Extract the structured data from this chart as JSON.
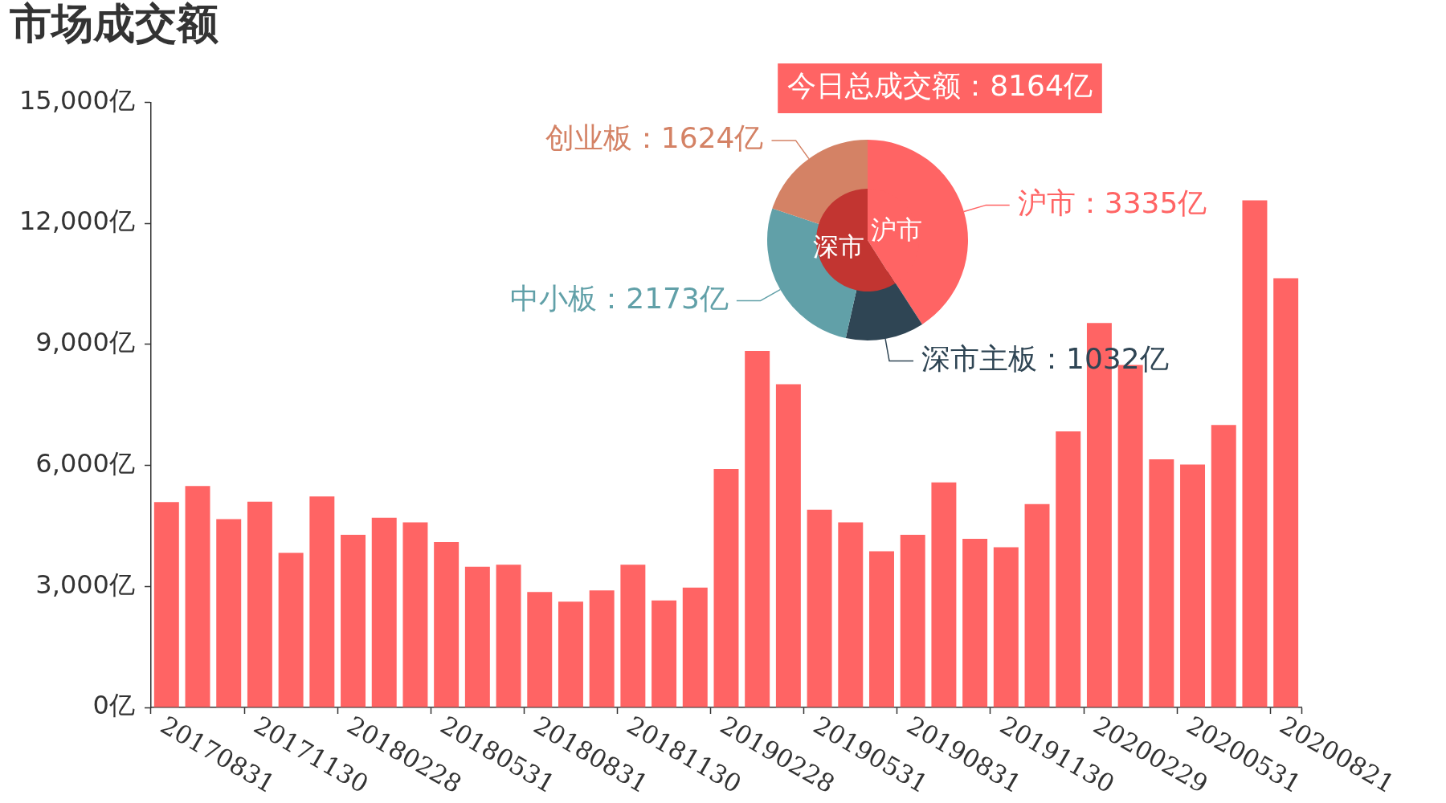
{
  "chart_data": [
    {
      "type": "bar",
      "title": "市场成交额",
      "categories": [
        "20170831",
        null,
        null,
        "20171130",
        null,
        null,
        "20180228",
        null,
        null,
        "20180531",
        null,
        null,
        "20180831",
        null,
        null,
        "20181130",
        null,
        null,
        "20190228",
        null,
        null,
        "20190531",
        null,
        null,
        "20190831",
        null,
        null,
        "20191130",
        null,
        null,
        "20200229",
        null,
        null,
        "20200531",
        null,
        null,
        "20200821"
      ],
      "values": [
        5090,
        5490,
        4670,
        5100,
        3830,
        5230,
        4280,
        4700,
        4590,
        4100,
        3490,
        3540,
        2860,
        2620,
        2900,
        3540,
        2650,
        2970,
        5910,
        8840,
        8010,
        4900,
        4590,
        3870,
        4280,
        5580,
        4180,
        3970,
        5040,
        6840,
        9530,
        8490,
        6150,
        6020,
        7000,
        12570,
        10640
      ],
      "color": "#ff6464",
      "ylim": [
        0,
        15000
      ],
      "yticks": [
        {
          "value": 0,
          "label": "0亿"
        },
        {
          "value": 3000,
          "label": "3,000亿"
        },
        {
          "value": 6000,
          "label": "6,000亿"
        },
        {
          "value": 9000,
          "label": "9,000亿"
        },
        {
          "value": 12000,
          "label": "12,000亿"
        },
        {
          "value": 15000,
          "label": "15,000亿"
        }
      ]
    },
    {
      "type": "donut",
      "title": "今日总成交额：8164亿",
      "categories": [
        "沪市：3335亿",
        "深市主板：1032亿",
        "中小板：2173亿",
        "创业板：1624亿"
      ],
      "values": [
        3335,
        1032,
        2173,
        1624
      ],
      "colors": [
        "#ff6464",
        "#2f4554",
        "#61a0a8",
        "#d48265"
      ]
    },
    {
      "type": "pie",
      "categories": [
        "沪市",
        "深市"
      ],
      "values": [
        41,
        59
      ],
      "colors": [
        "#ff6464",
        "#c23531"
      ]
    }
  ]
}
